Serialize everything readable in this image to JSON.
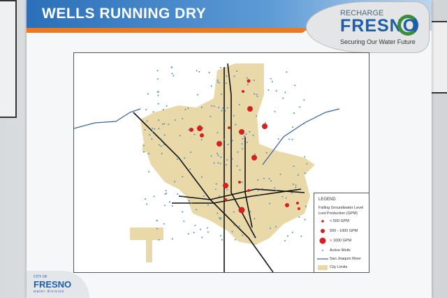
{
  "poster": {
    "title": "WELLS RUNNING DRY"
  },
  "logo": {
    "top": "RECHARGE",
    "name": "FRESNO",
    "tagline": "Securing Our Water Future"
  },
  "bottom_logo": {
    "city_of": "CITY OF",
    "name": "FRESNO",
    "division": "water division"
  },
  "legend": {
    "title": "LEGEND",
    "subtitle1": "Falling Groundwater Level",
    "subtitle2": "Lost Production (GPM)",
    "items": [
      {
        "label": "< 500 GPM",
        "symbol": "small-red-circle"
      },
      {
        "label": "500 - 1000 GPM",
        "symbol": "medium-red-circle"
      },
      {
        "label": "> 1000 GPM",
        "symbol": "large-red-circle"
      },
      {
        "label": "Active Wells",
        "symbol": "blue-dot"
      },
      {
        "label": "San Joaquin River",
        "symbol": "blue-line"
      },
      {
        "label": "City Limits",
        "symbol": "tan-fill"
      }
    ]
  },
  "colors": {
    "city": "#e9d9a8",
    "well_red": "#d42020",
    "well_blue": "#4a90c8",
    "river": "#3c5f9a",
    "header": "#2a6fb8",
    "accent": "#ee7a1f"
  }
}
